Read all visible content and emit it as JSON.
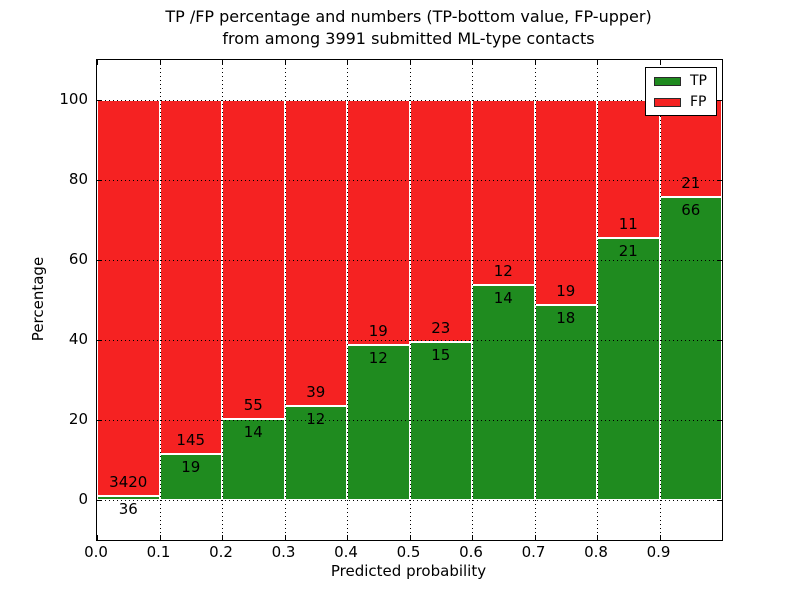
{
  "figure": {
    "title_line1": "TP /FP percentage and numbers (TP-bottom value, FP-upper)",
    "title_line2": "from among 3991 submitted ML-type contacts"
  },
  "chart_data": {
    "type": "bar",
    "subtype": "stacked-percentage",
    "title": "TP /FP percentage and numbers (TP-bottom value, FP-upper) from among 3991 submitted ML-type contacts",
    "xlabel": "Predicted probability",
    "ylabel": "Percentage",
    "x_tick_labels": [
      "0.0",
      "0.1",
      "0.2",
      "0.3",
      "0.4",
      "0.5",
      "0.6",
      "0.7",
      "0.8",
      "0.9"
    ],
    "y_tick_values": [
      0,
      20,
      40,
      60,
      80,
      100
    ],
    "xlim": [
      0.0,
      1.0
    ],
    "ylim": [
      -10,
      110
    ],
    "bin_width": 0.1,
    "grid": "dotted black, both axes, drawn above bars",
    "legend_position": "upper right",
    "series": [
      {
        "name": "TP",
        "color": "#1f8b1f",
        "counts": [
          36,
          19,
          14,
          12,
          12,
          15,
          14,
          18,
          21,
          66
        ]
      },
      {
        "name": "FP",
        "color": "#f52222",
        "counts": [
          3420,
          145,
          55,
          39,
          19,
          23,
          12,
          19,
          11,
          21
        ]
      }
    ],
    "tp_percent_by_bin": [
      1.04,
      11.59,
      20.29,
      23.53,
      38.71,
      39.47,
      53.85,
      48.65,
      65.63,
      75.86
    ],
    "bar_labels_note": "TP count printed below green/red boundary, FP count printed above it"
  },
  "colors": {
    "tp_green": "#1f8b1f",
    "fp_red": "#f52222",
    "bar_edge": "#ffffff",
    "grid": "#000000",
    "text": "#000000",
    "background": "#ffffff"
  }
}
